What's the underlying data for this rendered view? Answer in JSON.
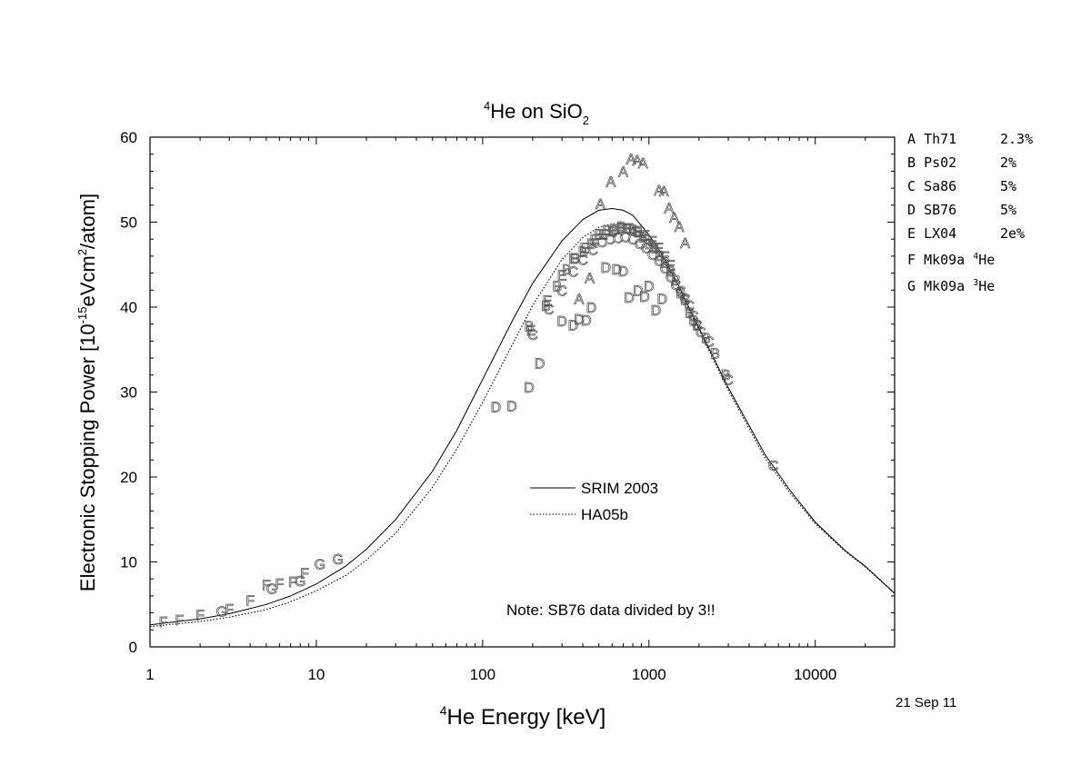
{
  "chart_data": {
    "type": "scatter",
    "title": {
      "sup": "4",
      "main": "He on SiO",
      "sub": "2"
    },
    "xlabel": {
      "sup": "4",
      "main": "He Energy [keV]"
    },
    "ylabel": {
      "pre": "Electronic Stopping Power [10",
      "sup1": "-15",
      "mid": "eVcm",
      "sup2": "2",
      "post": "/atom]"
    },
    "x_scale": "log",
    "xlim": [
      1,
      30000
    ],
    "ylim": [
      0,
      60
    ],
    "x_ticks": [
      1,
      10,
      100,
      1000,
      10000
    ],
    "x_tick_labels": [
      "1",
      "10",
      "100",
      "1000",
      "10000"
    ],
    "y_ticks": [
      0,
      10,
      20,
      30,
      40,
      50,
      60
    ],
    "y_tick_labels": [
      "0",
      "10",
      "20",
      "30",
      "40",
      "50",
      "60"
    ],
    "grid": false,
    "date_label": "21 Sep 11",
    "note": "Note: SB76 data divided by 3!!",
    "curves": [
      {
        "name": "SRIM 2003",
        "style": "solid",
        "x": [
          1,
          2,
          3,
          5,
          7,
          10,
          15,
          20,
          30,
          50,
          70,
          100,
          150,
          200,
          300,
          400,
          500,
          600,
          700,
          800,
          1000,
          1200,
          1500,
          2000,
          3000,
          5000,
          7000,
          10000,
          15000,
          20000,
          30000
        ],
        "y": [
          2.6,
          3.3,
          3.9,
          5.0,
          6.0,
          7.4,
          9.5,
          11.5,
          15.0,
          20.7,
          25.5,
          31.5,
          38.3,
          42.8,
          47.8,
          50.3,
          51.4,
          51.6,
          51.4,
          50.8,
          48.5,
          46.2,
          42.6,
          37.5,
          30.5,
          22.6,
          18.5,
          14.7,
          11.4,
          9.5,
          6.3
        ]
      },
      {
        "name": "HA05b",
        "style": "dotted",
        "x": [
          1,
          2,
          3,
          5,
          7,
          10,
          15,
          20,
          30,
          50,
          70,
          100,
          150,
          200,
          300,
          400,
          500,
          600,
          700,
          800,
          1000,
          1200,
          1500,
          2000,
          3000,
          5000,
          7000,
          10000,
          15000,
          20000,
          30000
        ],
        "y": [
          2.4,
          3.0,
          3.5,
          4.4,
          5.3,
          6.6,
          8.4,
          10.2,
          13.4,
          18.8,
          23.3,
          28.8,
          35.5,
          40.2,
          45.6,
          48.2,
          49.4,
          49.8,
          49.8,
          49.4,
          47.8,
          45.8,
          42.3,
          37.3,
          30.2,
          22.2,
          18.2,
          14.5,
          11.3,
          9.4,
          6.3
        ]
      }
    ],
    "series": [
      {
        "letter": "A",
        "name": "Th71",
        "uncert": "2.3%",
        "x": [
          510,
          590,
          700,
          780,
          850,
          920,
          1150,
          1230,
          1320,
          1420,
          1520,
          1650,
          380,
          440
        ],
        "y": [
          52.2,
          54.8,
          56.0,
          57.5,
          57.3,
          57.0,
          53.8,
          53.7,
          51.7,
          50.6,
          49.5,
          47.6,
          41.0,
          43.5
        ]
      },
      {
        "letter": "B",
        "name": "Ps02",
        "uncert": "2%",
        "x": [
          190,
          240,
          280,
          320,
          360,
          400,
          450,
          500,
          560,
          620,
          680,
          740,
          800,
          860,
          920,
          1000,
          1080,
          1160,
          1250,
          1350,
          1450,
          1550,
          1650,
          1750,
          1850,
          1950,
          2200,
          2500,
          2900
        ],
        "y": [
          37.8,
          40.2,
          42.5,
          44.5,
          45.8,
          46.6,
          47.5,
          48.6,
          49.1,
          49.2,
          49.5,
          49.3,
          49.2,
          48.9,
          48.3,
          47.5,
          47.0,
          46.1,
          45.3,
          44.3,
          43.2,
          41.7,
          40.9,
          39.4,
          38.5,
          37.9,
          36.4,
          34.6,
          32.1
        ]
      },
      {
        "letter": "C",
        "name": "Sa86",
        "uncert": "5%",
        "x": [
          200,
          250,
          300,
          350,
          400,
          460,
          520,
          580,
          650,
          720,
          800,
          880,
          960,
          1050,
          1150,
          1250,
          1350,
          1450,
          1550,
          1650,
          1750,
          1850,
          1950,
          2050,
          2300,
          3000,
          5600
        ],
        "y": [
          36.8,
          39.8,
          42.0,
          44.2,
          45.6,
          46.8,
          47.7,
          48.0,
          48.2,
          48.3,
          48.0,
          47.5,
          47.0,
          46.2,
          45.5,
          44.6,
          43.6,
          42.7,
          41.9,
          41.0,
          40.2,
          39.0,
          37.9,
          37.1,
          36.0,
          31.5,
          21.4
        ]
      },
      {
        "letter": "D",
        "name": "SB76",
        "uncert": "5%",
        "x": [
          120,
          150,
          190,
          220,
          300,
          350,
          380,
          420,
          450,
          550,
          640,
          700,
          760,
          860,
          940,
          1000,
          1100,
          1200
        ],
        "y": [
          28.3,
          28.4,
          30.6,
          33.4,
          38.4,
          37.9,
          38.6,
          38.5,
          40.0,
          44.7,
          44.5,
          44.3,
          41.2,
          42.0,
          41.3,
          42.5,
          39.7,
          41.0
        ]
      },
      {
        "letter": "E",
        "name": "LX04",
        "uncert": "2e%",
        "x": [
          195,
          245,
          300,
          350,
          410,
          470,
          530,
          600,
          680,
          760,
          850,
          950,
          1050,
          1150,
          1250,
          1350
        ],
        "y": [
          37.3,
          40.8,
          43.8,
          45.8,
          47.0,
          48.0,
          48.6,
          49.0,
          49.3,
          49.3,
          49.0,
          48.5,
          47.8,
          47.0,
          46.0,
          45.0
        ]
      },
      {
        "letter": "F",
        "name": "Mk09a",
        "iso": "4",
        "iso_rest": "He",
        "uncert": "",
        "x": [
          1.2,
          1.5,
          2.0,
          3.0,
          4.0,
          5.0,
          6.0,
          7.2,
          8.5
        ],
        "y": [
          3.0,
          3.2,
          3.8,
          4.5,
          5.5,
          7.3,
          7.5,
          7.7,
          8.7
        ]
      },
      {
        "letter": "G",
        "name": "Mk09a",
        "iso": "3",
        "iso_rest": "He",
        "uncert": "",
        "x": [
          2.7,
          5.4,
          8.0,
          10.5,
          13.5
        ],
        "y": [
          4.2,
          6.9,
          7.8,
          9.8,
          10.4
        ]
      }
    ],
    "legend": [
      {
        "label": "SRIM 2003",
        "style": "solid"
      },
      {
        "label": "HA05b",
        "style": "dotted"
      }
    ],
    "legend_placement": "center-bottom inside plot"
  }
}
